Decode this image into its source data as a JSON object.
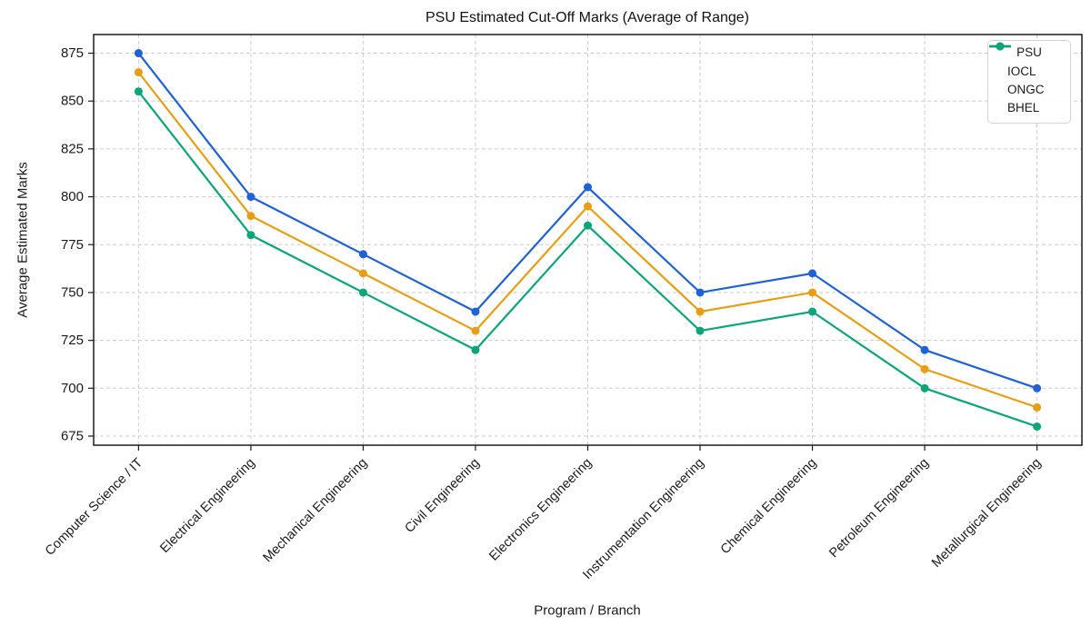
{
  "chart_data": {
    "type": "line",
    "title": "PSU Estimated Cut-Off Marks (Average of Range)",
    "xlabel": "Program / Branch",
    "ylabel": "Average Estimated Marks",
    "categories": [
      "Computer Science / IT",
      "Electrical Engineering",
      "Mechanical Engineering",
      "Civil Engineering",
      "Electronics Engineering",
      "Instrumentation Engineering",
      "Chemical Engineering",
      "Petroleum Engineering",
      "Metallurgical Engineering"
    ],
    "series": [
      {
        "name": "IOCL",
        "color": "#1f62d7",
        "values": [
          875,
          800,
          770,
          740,
          805,
          750,
          760,
          720,
          700
        ]
      },
      {
        "name": "ONGC",
        "color": "#e89e12",
        "values": [
          865,
          790,
          760,
          730,
          795,
          740,
          750,
          710,
          690
        ]
      },
      {
        "name": "BHEL",
        "color": "#0aa578",
        "values": [
          855,
          780,
          750,
          720,
          785,
          730,
          740,
          700,
          680
        ]
      }
    ],
    "yticks": [
      675,
      700,
      725,
      750,
      775,
      800,
      825,
      850,
      875
    ],
    "ylim": [
      670.25,
      884.75
    ],
    "xlim": [
      -0.4,
      8.4
    ],
    "grid": true,
    "legend": {
      "title": "PSU",
      "position": "upper right"
    }
  },
  "colors": {
    "grid": "#cdcdcd",
    "spine": "#1c1c1c",
    "text": "#1a1a1a",
    "background": "#ffffff",
    "legend_border": "#d4d4d4"
  }
}
